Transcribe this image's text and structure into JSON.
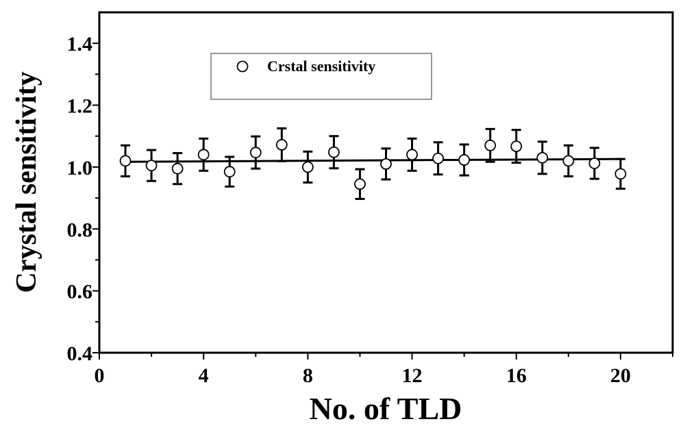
{
  "chart_data": {
    "type": "scatter",
    "title": "",
    "xlabel": "No. of TLD",
    "ylabel": "Crystal sensitivity",
    "xlim": [
      0,
      22
    ],
    "ylim": [
      0.4,
      1.5
    ],
    "xticks": [
      0,
      4,
      8,
      12,
      16,
      20
    ],
    "xtick_labels": [
      "0",
      "4",
      "8",
      "12",
      "16",
      "20"
    ],
    "yticks": [
      0.4,
      0.6,
      0.8,
      1.0,
      1.2,
      1.4
    ],
    "ytick_labels": [
      "0.4",
      "0.6",
      "0.8",
      "1.0",
      "1.2",
      "1.4"
    ],
    "grid": false,
    "legend_position": "top-left",
    "series": [
      {
        "name": "Crstal sensitivity",
        "marker": "open-circle",
        "x": [
          1,
          2,
          3,
          4,
          5,
          6,
          7,
          8,
          9,
          10,
          11,
          12,
          13,
          14,
          15,
          16,
          17,
          18,
          19,
          20
        ],
        "y": [
          1.02,
          1.005,
          0.995,
          1.04,
          0.985,
          1.047,
          1.072,
          1.0,
          1.048,
          0.945,
          1.01,
          1.04,
          1.028,
          1.023,
          1.07,
          1.067,
          1.03,
          1.02,
          1.012,
          0.978
        ],
        "error": [
          0.05,
          0.05,
          0.05,
          0.052,
          0.048,
          0.052,
          0.053,
          0.05,
          0.052,
          0.048,
          0.05,
          0.052,
          0.052,
          0.05,
          0.053,
          0.053,
          0.052,
          0.05,
          0.05,
          0.048
        ]
      }
    ],
    "fit_line": {
      "x": [
        1,
        20
      ],
      "y": [
        1.017,
        1.026
      ]
    },
    "colors": {
      "marker_fill": "#ffffff",
      "ink": "#000000"
    }
  }
}
